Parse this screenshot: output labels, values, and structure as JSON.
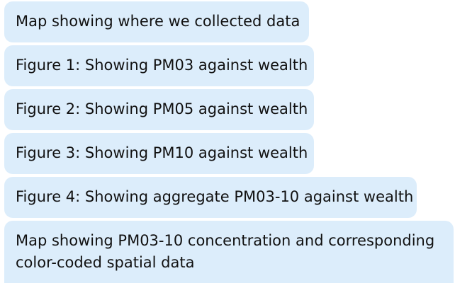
{
  "messages": [
    {
      "text": "Map showing where we collected data"
    },
    {
      "text": "Figure 1: Showing PM03 against wealth"
    },
    {
      "text": "Figure 2: Showing PM05 against wealth"
    },
    {
      "text": "Figure 3: Showing PM10 against wealth"
    },
    {
      "text": "Figure 4: Showing aggregate PM03-10 against wealth"
    },
    {
      "text": "Map showing PM03-10 concentration and corresponding color-coded spatial data"
    }
  ],
  "colors": {
    "bubble_background": "#dcedfb",
    "text": "#111111",
    "page_background": "#ffffff"
  }
}
